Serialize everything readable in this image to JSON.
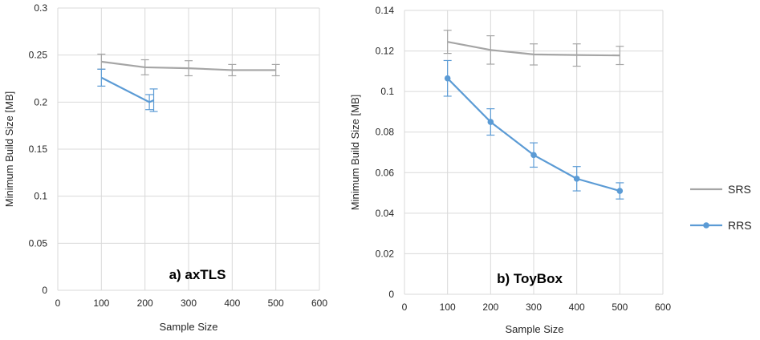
{
  "chart_data": [
    {
      "type": "line",
      "title": "a) axTLS",
      "xlabel": "Sample Size",
      "ylabel": "Minimum Build Size [MB]",
      "xlim": [
        0,
        600
      ],
      "ylim": [
        0,
        0.3
      ],
      "xticks": [
        "0",
        "100",
        "200",
        "300",
        "400",
        "500",
        "600"
      ],
      "yticks": [
        "0",
        "0.05",
        "0.1",
        "0.15",
        "0.2",
        "0.25",
        "0.3"
      ],
      "grid": true,
      "series": [
        {
          "name": "SRS",
          "color": "#a5a5a5",
          "markers": false,
          "x": [
            100,
            200,
            300,
            400,
            500
          ],
          "y": [
            0.243,
            0.237,
            0.236,
            0.234,
            0.234
          ],
          "err": [
            0.008,
            0.008,
            0.008,
            0.006,
            0.006
          ]
        },
        {
          "name": "RRS",
          "color": "#5b9bd5",
          "markers": false,
          "x": [
            100,
            210,
            220
          ],
          "y": [
            0.226,
            0.2,
            0.202
          ],
          "err": [
            0.009,
            0.008,
            0.012
          ]
        }
      ]
    },
    {
      "type": "line",
      "title": "b) ToyBox",
      "xlabel": "Sample Size",
      "ylabel": "Minimum Build Size [MB]",
      "xlim": [
        0,
        600
      ],
      "ylim": [
        0,
        0.14
      ],
      "xticks": [
        "0",
        "100",
        "200",
        "300",
        "400",
        "500",
        "600"
      ],
      "yticks": [
        "0",
        "0.02",
        "0.04",
        "0.06",
        "0.08",
        "0.1",
        "0.12",
        "0.14"
      ],
      "grid": true,
      "series": [
        {
          "name": "SRS",
          "color": "#a5a5a5",
          "markers": false,
          "x": [
            100,
            200,
            300,
            400,
            500
          ],
          "y": [
            0.1245,
            0.1205,
            0.1183,
            0.118,
            0.1178
          ],
          "err": [
            0.0057,
            0.007,
            0.0052,
            0.0055,
            0.0045
          ]
        },
        {
          "name": "RRS",
          "color": "#5b9bd5",
          "markers": true,
          "x": [
            100,
            200,
            300,
            400,
            500
          ],
          "y": [
            0.1065,
            0.085,
            0.0687,
            0.057,
            0.051
          ],
          "err": [
            0.0088,
            0.0065,
            0.006,
            0.006,
            0.004
          ]
        }
      ]
    }
  ],
  "legend": {
    "placement": "right",
    "items": [
      {
        "label": "SRS",
        "color": "#a5a5a5",
        "marker": false
      },
      {
        "label": "RRS",
        "color": "#5b9bd5",
        "marker": true
      }
    ]
  }
}
